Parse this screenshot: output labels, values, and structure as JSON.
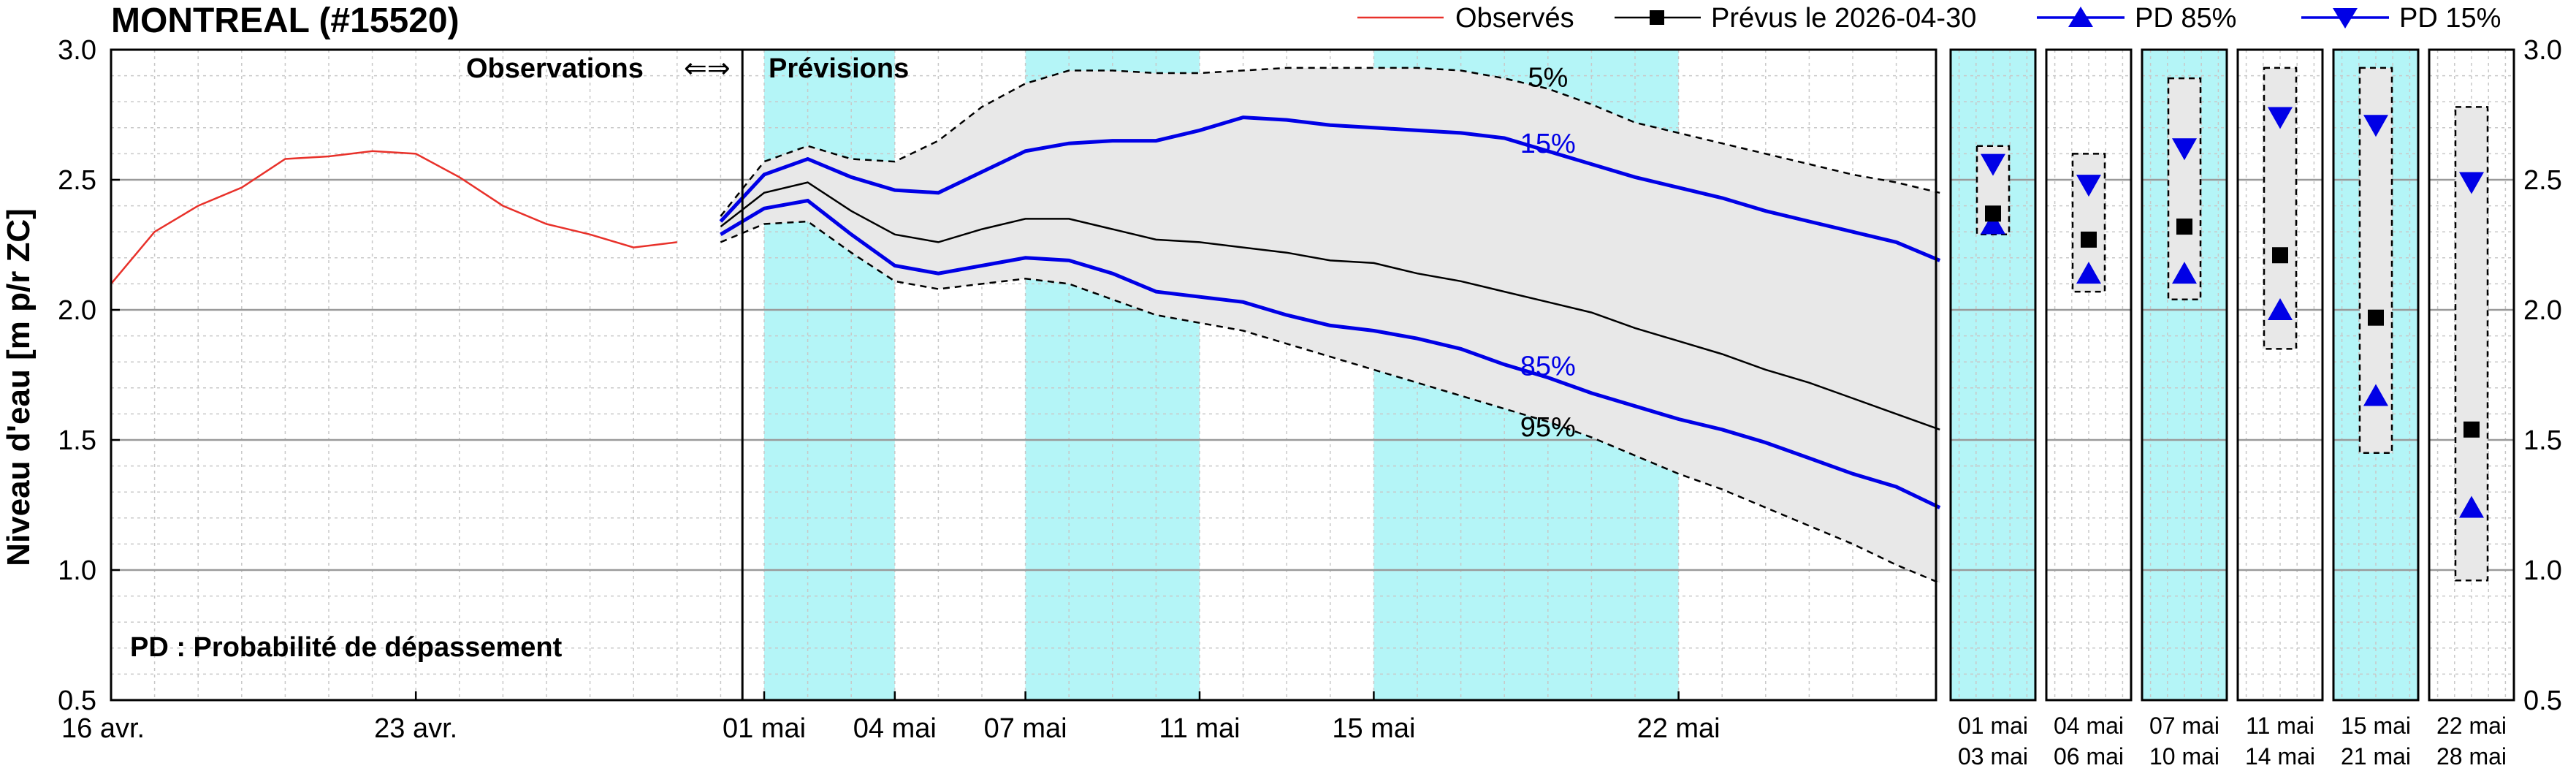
{
  "chart_data": {
    "type": "line",
    "title": "MONTREAL (#15520)",
    "ylabel": "Niveau d'eau [m p/r ZC]",
    "ylim": [
      0.5,
      3.0
    ],
    "yticks": [
      "0.5",
      "1.0",
      "1.5",
      "2.0",
      "2.5",
      "3.0"
    ],
    "ytick_values": [
      0.5,
      1.0,
      1.5,
      2.0,
      2.5,
      3.0
    ],
    "grid": true,
    "legend_position": "top-right",
    "legend": [
      {
        "key": "obs",
        "label": "Observés",
        "color": "#e8312a",
        "marker": "none"
      },
      {
        "key": "fc",
        "label": "Prévus le 2026-04-30",
        "color": "#000000",
        "marker": "square"
      },
      {
        "key": "pd85",
        "label": "PD 85%",
        "color": "#0000e6",
        "marker": "triangle-up"
      },
      {
        "key": "pd15",
        "label": "PD 15%",
        "color": "#0000e6",
        "marker": "triangle-down"
      }
    ],
    "annotations": {
      "obs_label": "Observations",
      "arrows": "⇐⇒",
      "fc_label": "Prévisions",
      "pd_note": "PD : Probabilité de dépassement"
    },
    "x_ticks": [
      {
        "label": "16 avr.",
        "day": -14
      },
      {
        "label": "23 avr.",
        "day": -7
      },
      {
        "label": "01 mai",
        "day": 1
      },
      {
        "label": "04 mai",
        "day": 4
      },
      {
        "label": "07 mai",
        "day": 7
      },
      {
        "label": "11 mai",
        "day": 11
      },
      {
        "label": "15 mai",
        "day": 15
      },
      {
        "label": "22 mai",
        "day": 22
      }
    ],
    "highlight_bands": [
      {
        "start_day": 1,
        "end_day": 4,
        "color": "#b4f5f7"
      },
      {
        "start_day": 7,
        "end_day": 11,
        "color": "#b4f5f7"
      },
      {
        "start_day": 15,
        "end_day": 22,
        "color": "#b4f5f7"
      }
    ],
    "observed": {
      "name": "Observés",
      "color": "#e8312a",
      "x_day": [
        -14,
        -13,
        -12,
        -11,
        -10,
        -9,
        -8,
        -7,
        -6,
        -5,
        -4,
        -3,
        -2,
        -1
      ],
      "y": [
        2.1,
        2.3,
        2.4,
        2.47,
        2.58,
        2.59,
        2.61,
        2.6,
        2.51,
        2.4,
        2.33,
        2.29,
        2.24,
        2.26
      ]
    },
    "forecast_days": [
      0,
      1,
      2,
      3,
      4,
      5,
      6,
      7,
      8,
      9,
      10,
      11,
      12,
      13,
      14,
      15,
      16,
      17,
      18,
      19,
      20,
      21,
      22,
      23,
      24,
      25,
      26,
      27,
      28
    ],
    "forecast": {
      "name": "Prévus le 2026-04-30",
      "color": "#000000",
      "y": [
        2.32,
        2.45,
        2.49,
        2.38,
        2.29,
        2.26,
        2.31,
        2.35,
        2.35,
        2.31,
        2.27,
        2.26,
        2.24,
        2.22,
        2.19,
        2.18,
        2.14,
        2.11,
        2.07,
        2.03,
        1.99,
        1.93,
        1.88,
        1.83,
        1.77,
        1.72,
        1.66,
        1.6,
        1.54
      ]
    },
    "pd15": {
      "name": "PD 15%",
      "label": "15%",
      "color": "#0000e6",
      "y": [
        2.34,
        2.52,
        2.58,
        2.51,
        2.46,
        2.45,
        2.53,
        2.61,
        2.64,
        2.65,
        2.65,
        2.69,
        2.74,
        2.73,
        2.71,
        2.7,
        2.69,
        2.68,
        2.66,
        2.61,
        2.56,
        2.51,
        2.47,
        2.43,
        2.38,
        2.34,
        2.3,
        2.26,
        2.19
      ]
    },
    "pd85": {
      "name": "PD 85%",
      "label": "85%",
      "color": "#0000e6",
      "y": [
        2.29,
        2.39,
        2.42,
        2.29,
        2.17,
        2.14,
        2.17,
        2.2,
        2.19,
        2.14,
        2.07,
        2.05,
        2.03,
        1.98,
        1.94,
        1.92,
        1.89,
        1.85,
        1.79,
        1.74,
        1.68,
        1.63,
        1.58,
        1.54,
        1.49,
        1.43,
        1.37,
        1.32,
        1.24
      ]
    },
    "p5": {
      "label": "5%",
      "y": [
        2.36,
        2.57,
        2.63,
        2.58,
        2.57,
        2.65,
        2.78,
        2.87,
        2.92,
        2.92,
        2.91,
        2.91,
        2.92,
        2.93,
        2.93,
        2.93,
        2.93,
        2.92,
        2.89,
        2.85,
        2.79,
        2.72,
        2.68,
        2.64,
        2.6,
        2.56,
        2.52,
        2.49,
        2.45
      ]
    },
    "p95": {
      "label": "95%",
      "y": [
        2.26,
        2.33,
        2.34,
        2.22,
        2.11,
        2.08,
        2.1,
        2.12,
        2.1,
        2.04,
        1.98,
        1.95,
        1.92,
        1.87,
        1.82,
        1.77,
        1.72,
        1.67,
        1.62,
        1.57,
        1.51,
        1.44,
        1.37,
        1.31,
        1.24,
        1.17,
        1.1,
        1.02,
        0.95
      ]
    },
    "weekly_panels": [
      {
        "label_top": "01  mai",
        "label_bottom": "03  mai",
        "highlight": true,
        "band_min": 2.29,
        "band_max": 2.63,
        "pd15": 2.56,
        "forecast": 2.37,
        "pd85": 2.33
      },
      {
        "label_top": "04  mai",
        "label_bottom": "06  mai",
        "highlight": false,
        "band_min": 2.07,
        "band_max": 2.6,
        "pd15": 2.48,
        "forecast": 2.27,
        "pd85": 2.14
      },
      {
        "label_top": "07  mai",
        "label_bottom": "10  mai",
        "highlight": true,
        "band_min": 2.04,
        "band_max": 2.89,
        "pd15": 2.62,
        "forecast": 2.32,
        "pd85": 2.14
      },
      {
        "label_top": "11  mai",
        "label_bottom": "14  mai",
        "highlight": false,
        "band_min": 1.85,
        "band_max": 2.93,
        "pd15": 2.74,
        "forecast": 2.21,
        "pd85": 2.0
      },
      {
        "label_top": "15  mai",
        "label_bottom": "21  mai",
        "highlight": true,
        "band_min": 1.45,
        "band_max": 2.93,
        "pd15": 2.71,
        "forecast": 1.97,
        "pd85": 1.67
      },
      {
        "label_top": "22  mai",
        "label_bottom": "28  mai",
        "highlight": false,
        "band_min": 0.96,
        "band_max": 2.78,
        "pd15": 2.49,
        "forecast": 1.54,
        "pd85": 1.24
      }
    ],
    "colors": {
      "band_fill": "#e8e8e8",
      "highlight": "#b4f5f7",
      "observed": "#e8312a",
      "pd": "#0000e6",
      "forecast": "#000000"
    }
  }
}
